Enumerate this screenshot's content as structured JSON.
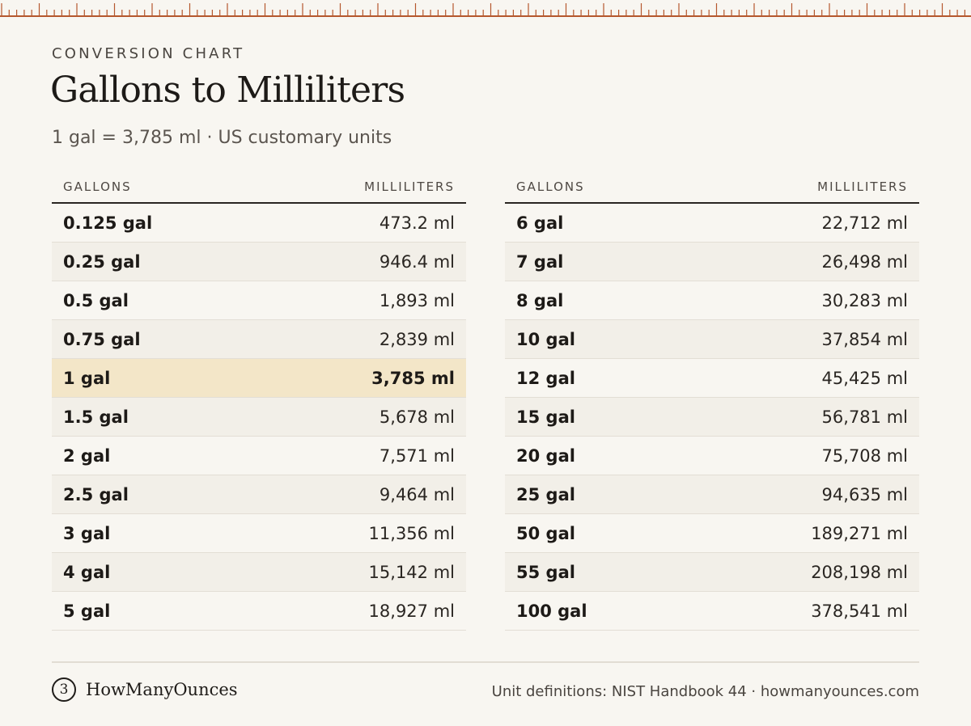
{
  "header": {
    "kicker": "CONVERSION CHART",
    "title": "Gallons to Milliliters",
    "subtitle": "1 gal = 3,785 ml · US customary units"
  },
  "colors": {
    "ruler": "#b5582e",
    "highlight": "#f3e6c8",
    "background": "#f8f6f1"
  },
  "tables": [
    {
      "col_gallons": "GALLONS",
      "col_ml": "MILLILITERS",
      "rows": [
        {
          "gal": "0.125 gal",
          "ml": "473.2 ml"
        },
        {
          "gal": "0.25 gal",
          "ml": "946.4 ml"
        },
        {
          "gal": "0.5 gal",
          "ml": "1,893 ml"
        },
        {
          "gal": "0.75 gal",
          "ml": "2,839 ml"
        },
        {
          "gal": "1 gal",
          "ml": "3,785 ml",
          "highlight": true
        },
        {
          "gal": "1.5 gal",
          "ml": "5,678 ml"
        },
        {
          "gal": "2 gal",
          "ml": "7,571 ml"
        },
        {
          "gal": "2.5 gal",
          "ml": "9,464 ml"
        },
        {
          "gal": "3 gal",
          "ml": "11,356 ml"
        },
        {
          "gal": "4 gal",
          "ml": "15,142 ml"
        },
        {
          "gal": "5 gal",
          "ml": "18,927 ml"
        }
      ]
    },
    {
      "col_gallons": "GALLONS",
      "col_ml": "MILLILITERS",
      "rows": [
        {
          "gal": "6 gal",
          "ml": "22,712 ml"
        },
        {
          "gal": "7 gal",
          "ml": "26,498 ml"
        },
        {
          "gal": "8 gal",
          "ml": "30,283 ml"
        },
        {
          "gal": "10 gal",
          "ml": "37,854 ml"
        },
        {
          "gal": "12 gal",
          "ml": "45,425 ml"
        },
        {
          "gal": "15 gal",
          "ml": "56,781 ml"
        },
        {
          "gal": "20 gal",
          "ml": "75,708 ml"
        },
        {
          "gal": "25 gal",
          "ml": "94,635 ml"
        },
        {
          "gal": "50 gal",
          "ml": "189,271 ml"
        },
        {
          "gal": "55 gal",
          "ml": "208,198 ml"
        },
        {
          "gal": "100 gal",
          "ml": "378,541 ml"
        }
      ]
    }
  ],
  "footer": {
    "brand_mark": "3",
    "brand_name": "HowManyOunces",
    "credit": "Unit definitions: NIST Handbook 44 · howmanyounces.com"
  }
}
